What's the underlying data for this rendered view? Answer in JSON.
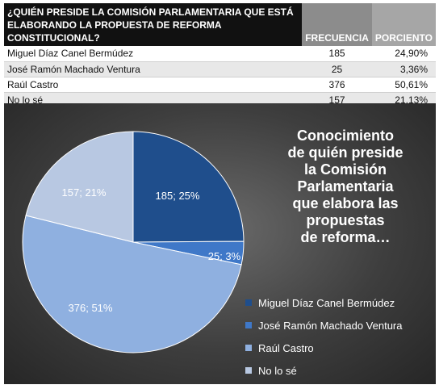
{
  "table": {
    "question_line1": "¿QUIÉN PRESIDE LA COMISIÓN PARLAMENTARIA QUE ESTÁ",
    "question_line2": "ELABORANDO LA PROPUESTA DE REFORMA CONSTITUCIONAL?",
    "col_frecuencia": "FRECUENCIA",
    "col_porciento": "PORCIENTO",
    "rows": [
      {
        "label": "Miguel Díaz Canel Bermúdez",
        "frecuencia": "185",
        "porciento": "24,90%"
      },
      {
        "label": "José Ramón Machado Ventura",
        "frecuencia": "25",
        "porciento": "3,36%"
      },
      {
        "label": "Raúl Castro",
        "frecuencia": "376",
        "porciento": "50,61%"
      },
      {
        "label": "No lo sé",
        "frecuencia": "157",
        "porciento": "21,13%"
      }
    ]
  },
  "chart_data": {
    "type": "pie",
    "title": "Conocimiento\nde quién preside\nla Comisión\nParlamentaria\nque elabora las\npropuestas\nde reforma…",
    "categories": [
      "Miguel Díaz Canel Bermúdez",
      "José Ramón Machado Ventura",
      "Raúl Castro",
      "No lo sé"
    ],
    "values": [
      185,
      25,
      376,
      157
    ],
    "data_labels": [
      "185; 25%",
      "25; 3%",
      "376; 51%",
      "157; 21%"
    ],
    "colors": [
      "#1f4e8c",
      "#3f78c8",
      "#8fb0e0",
      "#b8c8e2"
    ],
    "legend_position": "bottom-right"
  }
}
